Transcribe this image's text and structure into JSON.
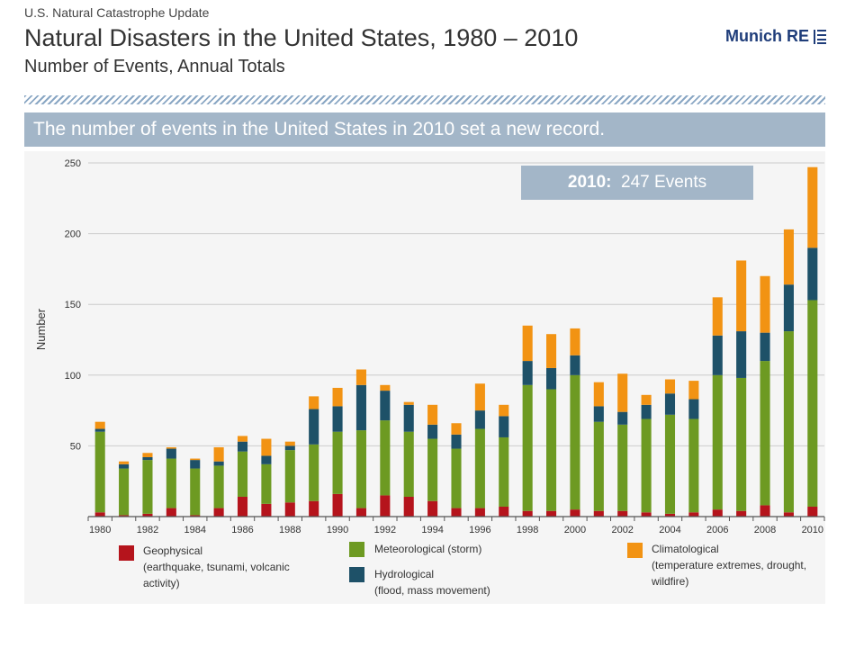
{
  "header": {
    "kicker": "U.S. Natural Catastrophe Update",
    "title": "Natural Disasters in the United States, 1980 – 2010",
    "subtitle": "Number of Events, Annual Totals",
    "logo": "Munich RE"
  },
  "banner": "The number of events in the United States in 2010 set a new record.",
  "callout": {
    "year": "2010:",
    "text": "247 Events"
  },
  "legend": [
    {
      "name": "Geophysical",
      "desc": "(earthquake, tsunami, volcanic activity)",
      "color": "#b5141c"
    },
    {
      "name": "Meteorological (storm)",
      "desc": "",
      "color": "#6d9a22"
    },
    {
      "name": "Hydrological",
      "desc": "(flood, mass movement)",
      "color": "#1e5168"
    },
    {
      "name": "Climatological",
      "desc": "(temperature extremes, drought, wildfire)",
      "color": "#f29313"
    }
  ],
  "chart_data": {
    "type": "bar",
    "stacked": true,
    "ylabel": "Number",
    "ylim": [
      0,
      250
    ],
    "yticks": [
      50,
      100,
      150,
      200,
      250
    ],
    "grid": true,
    "categories": [
      "1980",
      "1981",
      "1982",
      "1983",
      "1984",
      "1985",
      "1986",
      "1987",
      "1988",
      "1989",
      "1990",
      "1991",
      "1992",
      "1993",
      "1994",
      "1995",
      "1996",
      "1997",
      "1998",
      "1999",
      "2000",
      "2001",
      "2002",
      "2003",
      "2004",
      "2005",
      "2006",
      "2007",
      "2008",
      "2009",
      "2010"
    ],
    "x_tick_labels": [
      "1980",
      "",
      "1982",
      "",
      "1984",
      "",
      "1986",
      "",
      "1988",
      "",
      "1990",
      "",
      "1992",
      "",
      "1994",
      "",
      "1996",
      "",
      "1998",
      "",
      "2000",
      "",
      "2002",
      "",
      "2004",
      "",
      "2006",
      "",
      "2008",
      "",
      "2010"
    ],
    "series": [
      {
        "name": "Geophysical",
        "color": "#b5141c",
        "values": [
          3,
          1,
          2,
          6,
          1,
          6,
          14,
          9,
          10,
          11,
          16,
          6,
          15,
          14,
          11,
          6,
          6,
          7,
          4,
          4,
          5,
          4,
          4,
          3,
          2,
          3,
          5,
          4,
          8,
          3,
          7
        ]
      },
      {
        "name": "Meteorological (storm)",
        "color": "#6d9a22",
        "values": [
          57,
          33,
          38,
          35,
          33,
          30,
          32,
          28,
          37,
          40,
          44,
          55,
          53,
          46,
          44,
          42,
          56,
          49,
          89,
          86,
          95,
          63,
          61,
          66,
          70,
          66,
          95,
          94,
          102,
          128,
          146
        ]
      },
      {
        "name": "Hydrological",
        "color": "#1e5168",
        "values": [
          2,
          3,
          2,
          7,
          6,
          3,
          7,
          6,
          3,
          25,
          18,
          32,
          21,
          19,
          10,
          10,
          13,
          15,
          17,
          15,
          14,
          11,
          9,
          10,
          15,
          14,
          28,
          33,
          20,
          33,
          37
        ]
      },
      {
        "name": "Climatological",
        "color": "#f29313",
        "values": [
          5,
          2,
          3,
          1,
          1,
          10,
          4,
          12,
          3,
          9,
          13,
          11,
          4,
          2,
          14,
          8,
          19,
          8,
          25,
          24,
          19,
          17,
          27,
          7,
          10,
          13,
          27,
          50,
          40,
          39,
          57
        ]
      }
    ]
  }
}
